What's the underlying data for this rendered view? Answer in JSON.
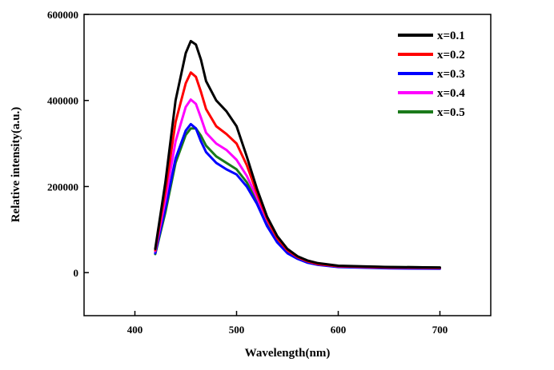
{
  "chart_data": {
    "type": "line",
    "xlabel": "Wavelength(nm)",
    "ylabel": "Relative intensity(a.u.)",
    "xlim": [
      350,
      750
    ],
    "ylim": [
      -100000,
      600000
    ],
    "x_ticks": [
      400,
      500,
      600,
      700
    ],
    "y_ticks": [
      0,
      200000,
      400000,
      600000
    ],
    "x_tick_labels": [
      "400",
      "500",
      "600",
      "700"
    ],
    "y_tick_labels": [
      "0",
      "200000",
      "400000",
      "600000"
    ],
    "grid": false,
    "legend_position": "top-right",
    "series": [
      {
        "name": "x=0.1",
        "color": "#000000",
        "x": [
          420,
          430,
          440,
          450,
          455,
          460,
          465,
          470,
          480,
          490,
          500,
          510,
          520,
          530,
          540,
          550,
          560,
          570,
          580,
          600,
          650,
          700
        ],
        "values": [
          55000,
          210000,
          400000,
          510000,
          538000,
          530000,
          495000,
          445000,
          400000,
          375000,
          340000,
          270000,
          195000,
          130000,
          85000,
          55000,
          38000,
          28000,
          22000,
          16000,
          13000,
          12000
        ]
      },
      {
        "name": "x=0.2",
        "color": "#ff0000",
        "x": [
          420,
          430,
          440,
          450,
          455,
          460,
          465,
          470,
          480,
          490,
          500,
          510,
          520,
          530,
          540,
          550,
          560,
          570,
          580,
          600,
          650,
          700
        ],
        "values": [
          52000,
          190000,
          350000,
          440000,
          465000,
          455000,
          420000,
          380000,
          340000,
          322000,
          300000,
          250000,
          185000,
          125000,
          80000,
          52000,
          36000,
          26000,
          20000,
          15000,
          12000,
          11000
        ]
      },
      {
        "name": "x=0.3",
        "color": "#0000ff",
        "x": [
          420,
          430,
          440,
          450,
          455,
          460,
          465,
          470,
          480,
          490,
          500,
          510,
          520,
          530,
          540,
          550,
          560,
          570,
          580,
          600,
          650,
          700
        ],
        "values": [
          45000,
          150000,
          265000,
          330000,
          345000,
          335000,
          305000,
          280000,
          255000,
          240000,
          228000,
          200000,
          160000,
          108000,
          70000,
          45000,
          32000,
          23000,
          18000,
          13000,
          10000,
          9000
        ]
      },
      {
        "name": "x=0.4",
        "color": "#ff00ff",
        "x": [
          420,
          430,
          440,
          450,
          455,
          460,
          465,
          470,
          480,
          490,
          500,
          510,
          520,
          530,
          540,
          550,
          560,
          570,
          580,
          600,
          650,
          700
        ],
        "values": [
          50000,
          170000,
          305000,
          385000,
          402000,
          392000,
          360000,
          325000,
          300000,
          285000,
          262000,
          225000,
          175000,
          122000,
          80000,
          52000,
          36000,
          26000,
          20000,
          15000,
          12000,
          11000
        ]
      },
      {
        "name": "x=0.5",
        "color": "#1a7a1a",
        "x": [
          420,
          430,
          440,
          450,
          455,
          460,
          465,
          470,
          480,
          490,
          500,
          510,
          520,
          530,
          540,
          550,
          560,
          570,
          580,
          600,
          650,
          700
        ],
        "values": [
          43000,
          140000,
          255000,
          320000,
          335000,
          335000,
          318000,
          295000,
          270000,
          255000,
          240000,
          210000,
          165000,
          115000,
          76000,
          50000,
          35000,
          26000,
          20000,
          15000,
          13000,
          12000
        ]
      }
    ]
  }
}
